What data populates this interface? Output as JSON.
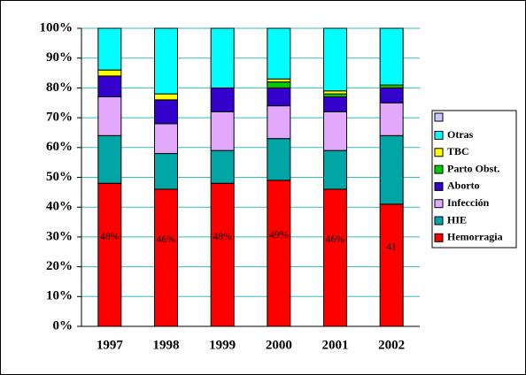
{
  "chart_data": {
    "type": "stacked_bar_100",
    "categories": [
      "1997",
      "1998",
      "1999",
      "2000",
      "2001",
      "2002"
    ],
    "series": [
      {
        "name": "Hemorragia",
        "color": "#ff0000",
        "values": [
          48,
          46,
          48,
          49,
          46,
          41
        ],
        "value_labels": [
          "48%",
          "46%",
          "48%",
          "49%",
          "46%",
          "41"
        ]
      },
      {
        "name": "HIE",
        "color": "#00a6a6",
        "values": [
          16,
          12,
          11,
          14,
          13,
          23
        ]
      },
      {
        "name": "Infección",
        "color": "#e2a8fa",
        "values": [
          13,
          10,
          13,
          11,
          13,
          11
        ]
      },
      {
        "name": "Aborto",
        "color": "#3300cc",
        "values": [
          7,
          8,
          8,
          6,
          5,
          5
        ]
      },
      {
        "name": "Parto  Obst.",
        "color": "#00cc00",
        "values": [
          0,
          0,
          0,
          2,
          1,
          1
        ]
      },
      {
        "name": "TBC",
        "color": "#ffff00",
        "values": [
          2,
          2,
          0,
          1,
          1,
          0
        ]
      },
      {
        "name": "Otras",
        "color": "#00ffff",
        "values": [
          14,
          22,
          20,
          17,
          21,
          19
        ]
      }
    ],
    "ylim": [
      0,
      100
    ],
    "yticks": [
      {
        "value": 0,
        "label": "0%"
      },
      {
        "value": 10,
        "label": "10%"
      },
      {
        "value": 20,
        "label": "20%"
      },
      {
        "value": 30,
        "label": "30%"
      },
      {
        "value": 40,
        "label": "40%"
      },
      {
        "value": 50,
        "label": "50%"
      },
      {
        "value": 60,
        "label": "60%"
      },
      {
        "value": 70,
        "label": "70%"
      },
      {
        "value": 80,
        "label": "80%"
      },
      {
        "value": 90,
        "label": "90%"
      },
      {
        "value": 100,
        "label": "100%"
      }
    ],
    "grid": true
  }
}
